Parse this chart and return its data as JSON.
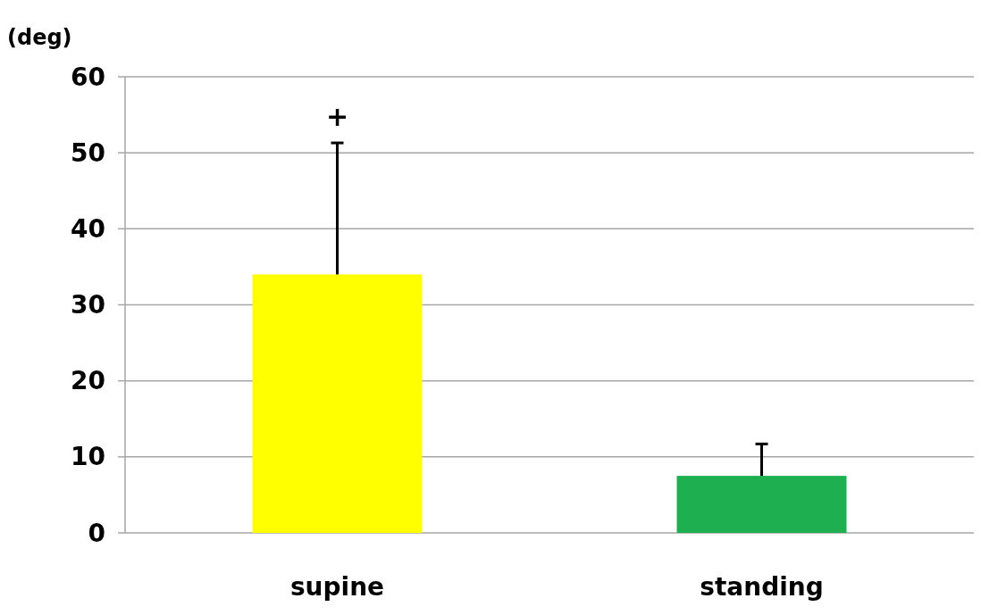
{
  "chart_data": {
    "type": "bar",
    "ylabel": "(deg)",
    "categories": [
      "supine",
      "standing"
    ],
    "values": [
      34,
      7.5
    ],
    "colors": [
      "#ffff00",
      "#1eb050"
    ],
    "errors": [
      [
        34,
        51.3
      ],
      [
        7.5,
        11.7
      ]
    ],
    "annotations": [
      "+"
    ],
    "ylim": [
      0,
      60
    ],
    "yticks": [
      0,
      10,
      20,
      30,
      40,
      50,
      60
    ],
    "grid": "y"
  }
}
